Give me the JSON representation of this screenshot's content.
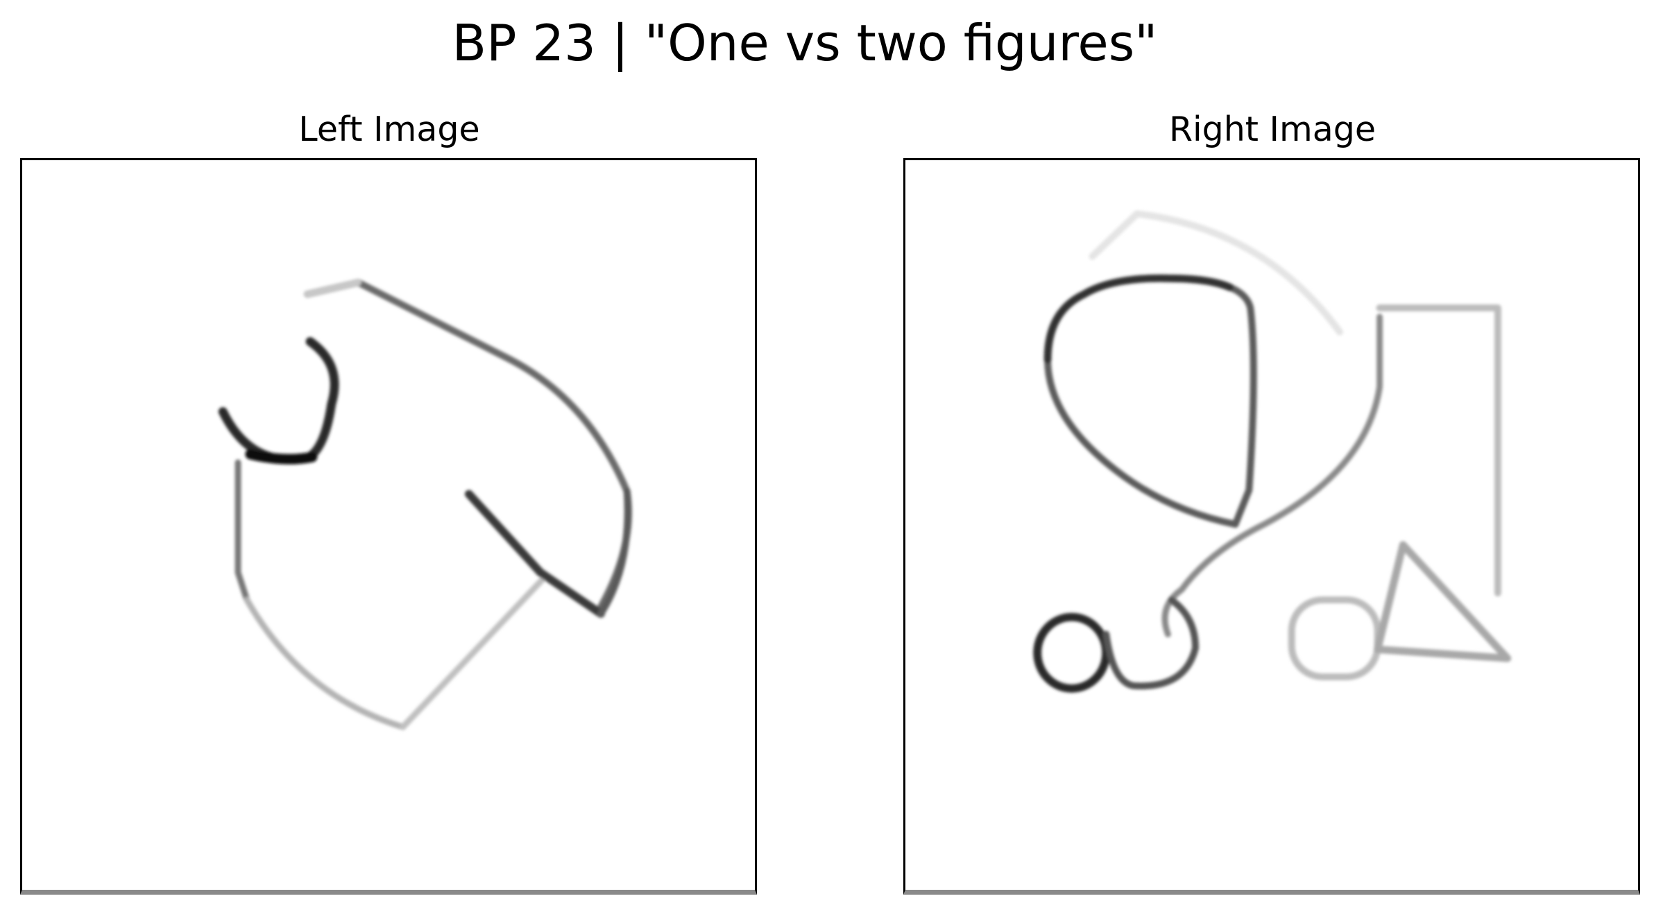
{
  "figure": {
    "title": "BP 23 | \"One vs two figures\""
  },
  "panels": [
    {
      "title": "Left Image"
    },
    {
      "title": "Right Image"
    }
  ],
  "colors": {
    "background": "#ffffff",
    "frame": "#000000",
    "stroke_dark": "#222222",
    "stroke_mid": "#666666",
    "stroke_light": "#bdbdbd"
  }
}
